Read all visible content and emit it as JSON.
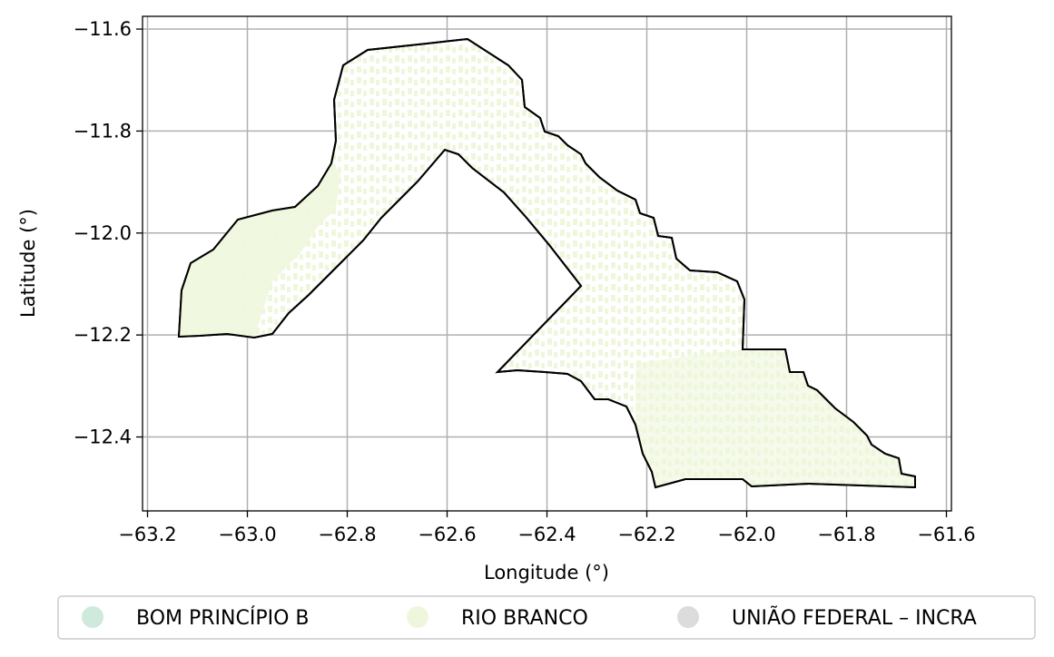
{
  "map": {
    "xlabel": "Longitude (°)",
    "ylabel": "Latitude (°)",
    "x_ticks": [
      -63.2,
      -63.0,
      -62.8,
      -62.6,
      -62.4,
      -62.2,
      -62.0,
      -61.8,
      -61.6
    ],
    "x_tick_labels": [
      "−63.2",
      "−63.0",
      "−62.8",
      "−62.6",
      "−62.4",
      "−62.2",
      "−62.0",
      "−61.8",
      "−61.6"
    ],
    "y_ticks": [
      -11.6,
      -11.8,
      -12.0,
      -12.2,
      -12.4
    ],
    "y_tick_labels": [
      "−11.6",
      "−11.8",
      "−12.0",
      "−12.2",
      "−12.4"
    ],
    "xlim": [
      -63.21,
      -61.59
    ],
    "ylim": [
      -12.545,
      -11.575
    ],
    "grid": true,
    "legend_placement": "bottom-center",
    "boundary_color": "#000000"
  },
  "legend": [
    {
      "label": "BOM PRINCÍPIO B",
      "color": "#cfeadc"
    },
    {
      "label": "RIO BRANCO",
      "color": "#eef7dc"
    },
    {
      "label": "UNIÃO FEDERAL – INCRA",
      "color": "#dcdcdc"
    }
  ]
}
